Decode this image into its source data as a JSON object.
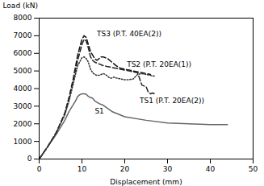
{
  "chart_data": {
    "type": "line",
    "xlabel": "Displacement (mm)",
    "ylabel": "Load (kN)",
    "xlim": [
      0,
      50
    ],
    "ylim": [
      0,
      8000
    ],
    "xticks": [
      0,
      10,
      20,
      30,
      40,
      50
    ],
    "yticks": [
      0,
      1000,
      2000,
      3000,
      4000,
      5000,
      6000,
      7000,
      8000
    ],
    "series": [
      {
        "color": "#666666",
        "line_style": "solid",
        "x": [
          0,
          2,
          4,
          6,
          7,
          8,
          8.5,
          9,
          9.5,
          10,
          10.5,
          11,
          11.5,
          12,
          12.5,
          13,
          14,
          15,
          17,
          20,
          25,
          30,
          35,
          40,
          44
        ],
        "values": [
          0,
          700,
          1400,
          2200,
          2700,
          3100,
          3300,
          3550,
          3650,
          3700,
          3700,
          3680,
          3550,
          3500,
          3450,
          3300,
          3150,
          3050,
          2700,
          2400,
          2200,
          2050,
          2000,
          1950,
          1950
        ]
      },
      {
        "color": "#111111",
        "line_style": "dashed",
        "x": [
          0,
          2,
          4,
          6,
          7,
          8,
          9,
          10,
          10.5,
          11,
          11.5,
          12,
          12.5,
          13,
          13.5,
          14,
          14.5,
          15,
          15.5,
          16,
          17,
          18,
          19,
          20,
          21,
          22,
          23,
          24,
          25,
          26
        ],
        "values": [
          0,
          700,
          1500,
          2600,
          3500,
          4600,
          5900,
          6800,
          7000,
          6900,
          6500,
          6100,
          5900,
          5700,
          5600,
          5700,
          5800,
          5800,
          5750,
          5700,
          5500,
          5300,
          5150,
          5100,
          5050,
          5000,
          4950,
          4900,
          4850,
          4800
        ]
      },
      {
        "color": "#222222",
        "line_style": "dashed",
        "x": [
          0,
          2,
          4,
          6,
          7,
          8,
          9,
          10,
          10.5,
          11,
          11.5,
          12,
          12.5,
          13,
          13.5,
          14,
          15,
          16,
          17,
          18,
          19,
          20,
          21,
          22,
          23,
          24,
          25,
          25.5,
          26,
          26.5,
          27
        ],
        "values": [
          0,
          700,
          1500,
          2600,
          3500,
          4500,
          5600,
          6500,
          6800,
          6700,
          6300,
          5800,
          5600,
          5500,
          5450,
          5400,
          5300,
          5250,
          5200,
          5150,
          5100,
          5050,
          5000,
          4950,
          4900,
          4200,
          4100,
          3800,
          3700,
          3750,
          3700
        ]
      },
      {
        "color": "#333333",
        "line_style": "dotted",
        "x": [
          0,
          2,
          4,
          6,
          7,
          8,
          9,
          10,
          10.5,
          11,
          11.5,
          12,
          12.5,
          13,
          13.5,
          14,
          14.5,
          15,
          15.5,
          16,
          16.5,
          17,
          17.5,
          18,
          19,
          20,
          21,
          22,
          23,
          24,
          25,
          26,
          27
        ],
        "values": [
          0,
          700,
          1500,
          2500,
          3300,
          4300,
          5300,
          5750,
          5800,
          5700,
          5500,
          5100,
          4900,
          4800,
          4750,
          4750,
          4800,
          4850,
          4800,
          4700,
          4600,
          4600,
          4650,
          4600,
          4550,
          4500,
          4500,
          4550,
          4800,
          4850,
          4800,
          4750,
          4700
        ]
      }
    ],
    "annotations": [
      {
        "text": "S1",
        "x": 13.0,
        "y": 2700
      },
      {
        "text": "TS1 (P.T. 20EA(2))",
        "x": 23.5,
        "y": 3300
      },
      {
        "text": "TS2 (P.T. 20EA(1))",
        "x": 20.5,
        "y": 5350
      },
      {
        "text": "TS3 (P.T. 40EA(2))",
        "x": 13.5,
        "y": 7100
      }
    ]
  }
}
